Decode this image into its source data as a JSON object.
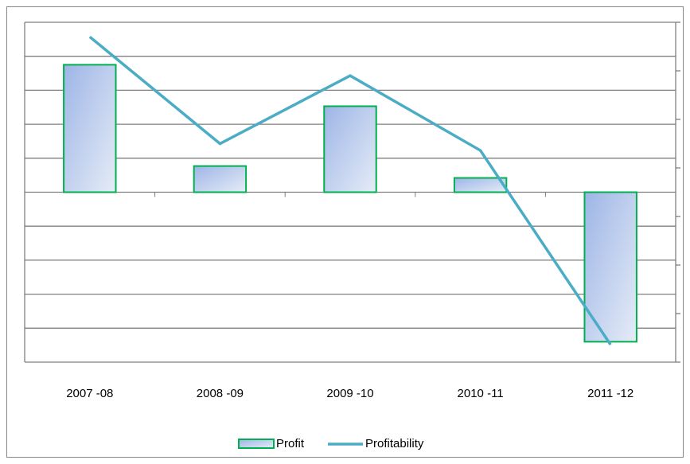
{
  "chart_data": {
    "type": "bar",
    "categories": [
      "2007 -08",
      "2008 -09",
      "2009 -10",
      "2010 -11",
      "2011 -12"
    ],
    "series": [
      {
        "name": "Profit",
        "type": "bar",
        "color": "#00b050",
        "values": [
          3.75,
          0.77,
          2.53,
          0.42,
          -4.4
        ]
      },
      {
        "name": "Profitability",
        "type": "line",
        "axis": "y2",
        "color": "#4bacc6",
        "values": [
          6.7,
          4.5,
          5.9,
          4.36,
          0.36
        ]
      }
    ],
    "ylim": [
      -5,
      5
    ],
    "yticks": [
      -5,
      -4,
      -3,
      -2,
      -1,
      0,
      1,
      2,
      3,
      4,
      5
    ],
    "y2lim": [
      0,
      7
    ],
    "y2ticks": [
      0,
      1,
      2,
      3,
      4,
      5,
      6,
      7
    ],
    "grid": true,
    "legend": "bottom"
  }
}
